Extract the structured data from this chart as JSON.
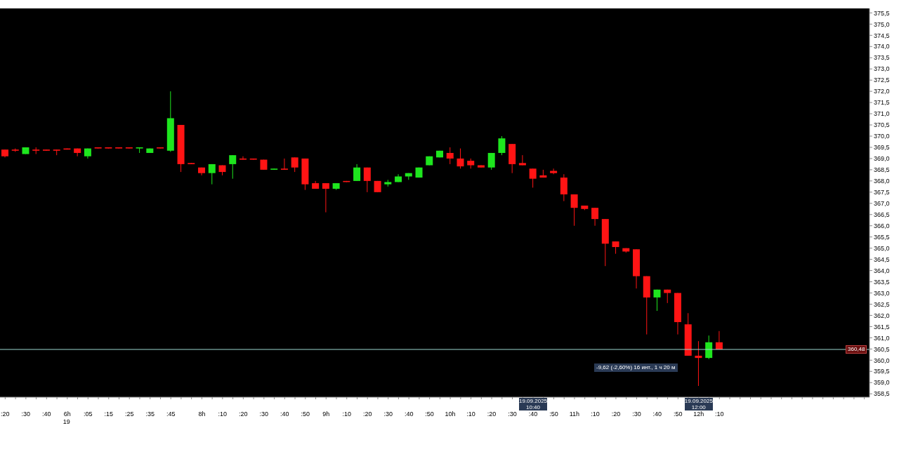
{
  "chart_data": {
    "type": "candlestick",
    "categories": [
      ":20",
      null,
      ":30",
      null,
      ":40",
      null,
      "6h",
      null,
      ":05",
      null,
      ":15",
      null,
      ":25",
      null,
      ":35",
      null,
      ":45",
      null,
      null,
      "8h",
      null,
      ":10",
      null,
      ":20",
      null,
      ":30",
      null,
      ":40",
      null,
      ":50",
      null,
      "9h",
      null,
      ":10",
      null,
      ":20",
      null,
      ":30",
      null,
      ":40",
      null,
      ":50",
      null,
      "10h",
      null,
      ":10",
      null,
      ":20",
      null,
      ":30",
      null,
      ":40",
      null,
      ":50",
      null,
      "11h",
      null,
      ":10",
      null,
      ":20",
      null,
      ":30",
      null,
      ":40",
      null,
      ":50",
      null,
      "12h",
      null,
      ":10",
      null,
      null,
      null,
      null,
      null,
      null,
      null,
      null,
      null,
      null,
      null,
      null,
      null,
      null
    ],
    "ohlc": [
      [
        369.4,
        369.4,
        369.05,
        369.1
      ],
      [
        369.4,
        369.45,
        369.3,
        369.35
      ],
      [
        369.2,
        369.5,
        369.2,
        369.5
      ],
      [
        369.4,
        369.5,
        369.2,
        369.35
      ],
      [
        369.4,
        369.4,
        369.35,
        369.35
      ],
      [
        369.4,
        369.4,
        369.15,
        369.35
      ],
      [
        369.45,
        369.45,
        369.4,
        369.4
      ],
      [
        369.45,
        369.45,
        369.1,
        369.25
      ],
      [
        369.1,
        369.45,
        369.0,
        369.45
      ],
      [
        369.5,
        369.5,
        369.45,
        369.45
      ],
      [
        369.5,
        369.5,
        369.45,
        369.45
      ],
      [
        369.5,
        369.5,
        369.45,
        369.45
      ],
      [
        369.5,
        369.5,
        369.45,
        369.45
      ],
      [
        369.45,
        369.5,
        369.25,
        369.5
      ],
      [
        369.25,
        369.45,
        369.25,
        369.45
      ],
      [
        369.5,
        369.5,
        369.45,
        369.45
      ],
      [
        369.35,
        372.0,
        369.3,
        370.8
      ],
      [
        370.5,
        370.5,
        368.4,
        368.75
      ],
      [
        368.8,
        368.8,
        368.75,
        368.75
      ],
      [
        368.6,
        368.6,
        368.25,
        368.35
      ],
      [
        368.35,
        368.75,
        367.85,
        368.75
      ],
      [
        368.7,
        368.7,
        368.25,
        368.4
      ],
      [
        368.75,
        369.15,
        368.1,
        369.15
      ],
      [
        369.0,
        369.1,
        368.95,
        368.95
      ],
      [
        369.0,
        369.0,
        368.95,
        368.95
      ],
      [
        368.95,
        368.95,
        368.5,
        368.5
      ],
      [
        368.5,
        368.55,
        368.5,
        368.55
      ],
      [
        368.55,
        369.0,
        368.5,
        368.5
      ],
      [
        369.05,
        369.05,
        368.4,
        368.6
      ],
      [
        369.0,
        369.0,
        367.6,
        367.85
      ],
      [
        367.9,
        368.0,
        367.65,
        367.65
      ],
      [
        367.9,
        367.9,
        366.6,
        367.65
      ],
      [
        367.65,
        367.9,
        367.6,
        367.9
      ],
      [
        368.0,
        368.0,
        367.95,
        367.95
      ],
      [
        368.0,
        368.75,
        368.0,
        368.6
      ],
      [
        368.6,
        368.6,
        367.5,
        368.0
      ],
      [
        368.0,
        368.0,
        367.5,
        367.5
      ],
      [
        367.85,
        368.05,
        367.75,
        367.95
      ],
      [
        367.95,
        368.3,
        367.95,
        368.2
      ],
      [
        368.2,
        368.35,
        368.05,
        368.35
      ],
      [
        368.15,
        368.6,
        368.15,
        368.6
      ],
      [
        368.7,
        369.1,
        368.7,
        369.1
      ],
      [
        369.05,
        369.35,
        369.05,
        369.35
      ],
      [
        369.25,
        369.5,
        368.75,
        369.0
      ],
      [
        369.0,
        369.45,
        368.55,
        368.65
      ],
      [
        368.9,
        369.0,
        368.55,
        368.7
      ],
      [
        368.7,
        368.7,
        368.6,
        368.6
      ],
      [
        368.6,
        369.25,
        368.5,
        369.25
      ],
      [
        369.25,
        370.0,
        369.15,
        369.9
      ],
      [
        369.65,
        369.65,
        368.35,
        368.75
      ],
      [
        368.8,
        369.15,
        368.7,
        368.7
      ],
      [
        368.55,
        368.55,
        367.7,
        368.1
      ],
      [
        368.25,
        368.5,
        368.15,
        368.15
      ],
      [
        368.45,
        368.55,
        368.3,
        368.35
      ],
      [
        368.15,
        368.3,
        367.1,
        367.4
      ],
      [
        367.4,
        367.4,
        366.0,
        366.8
      ],
      [
        366.9,
        366.9,
        366.7,
        366.75
      ],
      [
        366.8,
        366.8,
        366.0,
        366.3
      ],
      [
        366.3,
        366.3,
        364.2,
        365.2
      ],
      [
        365.3,
        365.3,
        364.75,
        365.05
      ],
      [
        365.0,
        365.0,
        364.8,
        364.85
      ],
      [
        364.95,
        364.95,
        363.2,
        363.75
      ],
      [
        363.75,
        363.75,
        361.15,
        362.8
      ],
      [
        362.8,
        363.15,
        362.2,
        363.15
      ],
      [
        363.15,
        363.15,
        362.55,
        363.0
      ],
      [
        363.0,
        363.0,
        361.15,
        361.7
      ],
      [
        361.6,
        362.1,
        360.2,
        360.2
      ],
      [
        360.2,
        360.85,
        358.85,
        360.1
      ],
      [
        360.1,
        361.1,
        360.05,
        360.8
      ],
      [
        360.8,
        361.3,
        360.48,
        360.48
      ],
      null,
      null,
      null,
      null,
      null,
      null,
      null,
      null,
      null,
      null,
      null,
      null,
      null,
      null
    ],
    "ylim": [
      358.35,
      375.7
    ],
    "yticks": [
      {
        "value": 358.5,
        "label": "358,5"
      },
      {
        "value": 359,
        "label": "359,0"
      },
      {
        "value": 359.5,
        "label": "359,5"
      },
      {
        "value": 360,
        "label": "360,0"
      },
      {
        "value": 360.5,
        "label": "360,5"
      },
      {
        "value": 361,
        "label": "361,0"
      },
      {
        "value": 361.5,
        "label": "361,5"
      },
      {
        "value": 362,
        "label": "362,0"
      },
      {
        "value": 362.5,
        "label": "362,5"
      },
      {
        "value": 363,
        "label": "363,0"
      },
      {
        "value": 363.5,
        "label": "363,5"
      },
      {
        "value": 364,
        "label": "364,0"
      },
      {
        "value": 364.5,
        "label": "364,5"
      },
      {
        "value": 365,
        "label": "365,0"
      },
      {
        "value": 365.5,
        "label": "365,5"
      },
      {
        "value": 366,
        "label": "366,0"
      },
      {
        "value": 366.5,
        "label": "366,5"
      },
      {
        "value": 367,
        "label": "367,0"
      },
      {
        "value": 367.5,
        "label": "367,5"
      },
      {
        "value": 368,
        "label": "368,0"
      },
      {
        "value": 368.5,
        "label": "368,5"
      },
      {
        "value": 369,
        "label": "369,0"
      },
      {
        "value": 369.5,
        "label": "369,5"
      },
      {
        "value": 370,
        "label": "370,0"
      },
      {
        "value": 370.5,
        "label": "370,5"
      },
      {
        "value": 371,
        "label": "371,0"
      },
      {
        "value": 371.5,
        "label": "371,5"
      },
      {
        "value": 372,
        "label": "372,0"
      },
      {
        "value": 372.5,
        "label": "372,5"
      },
      {
        "value": 373,
        "label": "373,0"
      },
      {
        "value": 373.5,
        "label": "373,5"
      },
      {
        "value": 374,
        "label": "374,0"
      },
      {
        "value": 374.5,
        "label": "374,5"
      },
      {
        "value": 375,
        "label": "375,0"
      },
      {
        "value": 375.5,
        "label": "375,5"
      }
    ],
    "ref_lines": [
      {
        "axis": "y",
        "value": 360.48,
        "label": "360,48",
        "color": "#9ad8d0"
      }
    ],
    "annotations": [
      "-9,62 (-2,60%) 16 инт., 1 ч 20 м",
      "19",
      "19.09.2025 10:40",
      "19.09.2025 12:00"
    ],
    "grid": false,
    "legend": false
  }
}
